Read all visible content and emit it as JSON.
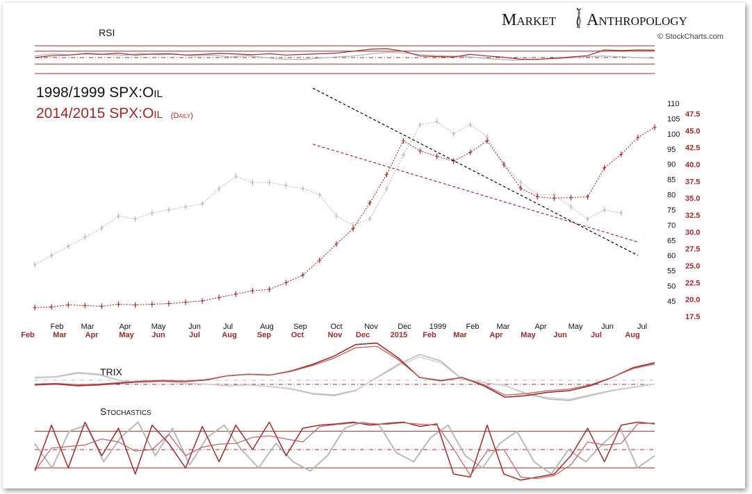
{
  "brand": {
    "name_part1": "Market",
    "name_part2": "Anthropology",
    "credit": "© StockCharts.com"
  },
  "chart_data": {
    "type": "line",
    "title_line1": "1998/1999 SPX:Oil",
    "title_line2": "2014/2015 SPX:Oil",
    "title_line2_note": "(Daily)",
    "colors": {
      "series_1998": "#b8b8b8",
      "series_2014": "#a0282a",
      "trendlines": "#000000"
    },
    "panels": {
      "rsi_label": "RSI",
      "trix_label": "TRIX",
      "stochastics_label": "Stochastics"
    },
    "x_axis_1998": [
      "Feb",
      "Mar",
      "Apr",
      "May",
      "Jun",
      "Jul",
      "Aug",
      "Sep",
      "Oct",
      "Nov",
      "Dec",
      "1999",
      "Feb",
      "Mar",
      "Apr",
      "May",
      "Jun",
      "Jul"
    ],
    "x_axis_2014": [
      "Feb",
      "Mar",
      "Apr",
      "May",
      "Jun",
      "Jul",
      "Aug",
      "Sep",
      "Oct",
      "Nov",
      "Dec",
      "2015",
      "Feb",
      "Mar",
      "Apr",
      "May",
      "Jun",
      "Jul",
      "Aug"
    ],
    "y_axis_1998": [
      "110",
      "105",
      "100",
      "95",
      "90",
      "85",
      "80",
      "75",
      "70",
      "65",
      "60",
      "55",
      "50",
      "45"
    ],
    "y_axis_2014": [
      "47.5",
      "45.0",
      "42.5",
      "40.0",
      "37.5",
      "35.0",
      "32.5",
      "30.0",
      "27.5",
      "25.0",
      "22.5",
      "20.0",
      "17.5"
    ],
    "series": [
      {
        "key": "spx_oil_1998",
        "x_months": [
          0,
          0.5,
          1,
          1.5,
          2,
          2.5,
          3,
          3.5,
          4,
          4.5,
          5,
          5.5,
          6,
          6.5,
          7,
          7.5,
          8,
          8.5,
          9,
          9.5,
          10,
          10.5,
          11,
          11.5,
          12,
          12.5,
          13,
          13.5,
          14,
          14.5,
          15,
          15.5,
          16,
          16.5,
          17,
          17.5
        ],
        "values": [
          57,
          60,
          63,
          66,
          69,
          73,
          72,
          74,
          75,
          76,
          77,
          82,
          86,
          84,
          84,
          83,
          82,
          80,
          73,
          70,
          72,
          82,
          93,
          103,
          104,
          100,
          103,
          99,
          90,
          84,
          80,
          80,
          76,
          72,
          75,
          74
        ]
      },
      {
        "key": "spx_oil_2014",
        "x_months": [
          0,
          0.5,
          1,
          1.5,
          2,
          2.5,
          3,
          3.5,
          4,
          4.5,
          5,
          5.5,
          6,
          6.5,
          7,
          7.5,
          8,
          8.5,
          9,
          9.5,
          10,
          10.5,
          11,
          11.5,
          12,
          12.5,
          13,
          13.5,
          14,
          14.5,
          15,
          15.5,
          16,
          16.5,
          17,
          17.5,
          18,
          18.5
        ],
        "values": [
          18.8,
          18.9,
          19.2,
          19.1,
          19.0,
          19.3,
          19.2,
          19.3,
          19.4,
          19.6,
          19.8,
          20.3,
          20.8,
          21.3,
          21.5,
          22.5,
          23.6,
          25.8,
          28.2,
          30.5,
          34.3,
          38.5,
          43.5,
          42.0,
          41.2,
          40.5,
          41.8,
          43.5,
          40.0,
          36.5,
          35.2,
          35.0,
          35.1,
          35.2,
          39.5,
          41.5,
          44.0,
          45.5
        ]
      }
    ],
    "trendlines": [
      {
        "name": "black-dashed",
        "from": {
          "x_month": 8.3,
          "value_1998": 115
        },
        "to": {
          "x_month": 18.0,
          "value_1998": 60
        }
      },
      {
        "name": "red-dashed",
        "from": {
          "x_month": 8.3,
          "value_2014": 43.0
        },
        "to": {
          "x_month": 18.0,
          "value_2014": 28.5
        }
      }
    ],
    "indicators": {
      "rsi": {
        "levels": [
          70,
          50,
          30
        ],
        "series_1998": [
          55,
          62,
          58,
          64,
          60,
          57,
          63,
          59,
          61,
          55,
          58,
          52,
          56,
          50,
          45,
          44,
          48,
          52,
          55,
          62,
          66,
          64,
          58,
          56,
          54,
          50,
          45,
          42,
          44,
          46,
          48,
          52,
          55,
          53,
          50,
          48
        ],
        "series_2014": [
          50,
          56,
          58,
          62,
          60,
          64,
          58,
          61,
          62,
          58,
          60,
          63,
          61,
          59,
          62,
          58,
          60,
          62,
          64,
          70,
          76,
          78,
          70,
          55,
          53,
          52,
          60,
          55,
          51,
          45,
          44,
          48,
          52,
          56,
          74,
          72,
          74,
          73
        ]
      },
      "trix": {
        "series_1998": [
          0.4,
          0.45,
          0.7,
          0.6,
          0.2,
          0.1,
          0.15,
          0.05,
          0.0,
          -0.1,
          -0.05,
          -0.15,
          -0.3,
          -0.6,
          -0.7,
          -0.4,
          0.4,
          1.2,
          1.8,
          1.4,
          0.3,
          0.1,
          -0.1,
          -0.6,
          -0.9,
          -1.0,
          -0.7,
          -0.4,
          -0.2,
          0.0
        ],
        "series_2014": [
          -0.05,
          0.0,
          -0.1,
          -0.05,
          0.05,
          0.15,
          0.2,
          0.15,
          0.25,
          0.5,
          0.6,
          0.55,
          0.8,
          1.2,
          1.7,
          2.4,
          2.5,
          1.6,
          0.4,
          0.2,
          0.4,
          -0.1,
          -0.8,
          -0.7,
          -0.5,
          -0.4,
          -0.1,
          0.4,
          1.0,
          1.3
        ]
      },
      "stochastics": {
        "levels": [
          80,
          50,
          20
        ],
        "series_1998": [
          60,
          20,
          80,
          90,
          30,
          70,
          95,
          40,
          85,
          25,
          70,
          90,
          50,
          20,
          60,
          30,
          15,
          40,
          85,
          95,
          90,
          45,
          30,
          70,
          90,
          40,
          20,
          60,
          80,
          30,
          10,
          50,
          30,
          60,
          85,
          20,
          40
        ],
        "series_2014": [
          15,
          90,
          20,
          95,
          40,
          85,
          10,
          90,
          60,
          20,
          88,
          30,
          90,
          50,
          95,
          40,
          85,
          90,
          92,
          95,
          90,
          93,
          95,
          88,
          92,
          10,
          5,
          90,
          10,
          0,
          5,
          10,
          40,
          85,
          30,
          90,
          95,
          92
        ]
      }
    }
  }
}
